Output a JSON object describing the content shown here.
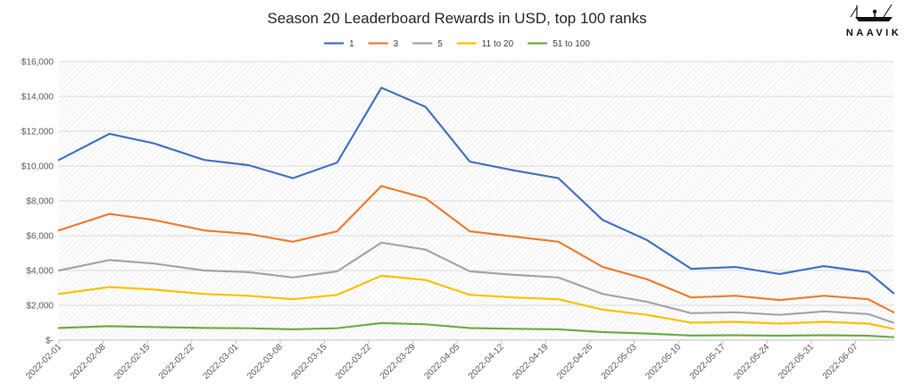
{
  "brand": {
    "logo_text": "NAAVIK"
  },
  "chart_data": {
    "type": "line",
    "title": "Season 20 Leaderboard Rewards in USD, top 100 ranks",
    "xlabel": "",
    "ylabel": "",
    "ylim": [
      0,
      16000
    ],
    "yticks": [
      0,
      2000,
      4000,
      6000,
      8000,
      10000,
      12000,
      14000,
      16000
    ],
    "ytick_labels": [
      "$-",
      "$2,000",
      "$4,000",
      "$6,000",
      "$8,000",
      "$10,000",
      "$12,000",
      "$14,000",
      "$16,000"
    ],
    "x": [
      "2022-02-01",
      "2022-02-09",
      "2022-02-16",
      "2022-02-24",
      "2022-03-03",
      "2022-03-10",
      "2022-03-17",
      "2022-03-24",
      "2022-03-31",
      "2022-04-07",
      "2022-04-14",
      "2022-04-21",
      "2022-04-28",
      "2022-05-05",
      "2022-05-12",
      "2022-05-19",
      "2022-05-26",
      "2022-06-02",
      "2022-06-09",
      "2022-06-13"
    ],
    "x_ticks": [
      "2022-02-01",
      "2022-02-08",
      "2022-02-15",
      "2022-02-22",
      "2022-03-01",
      "2022-03-08",
      "2022-03-15",
      "2022-03-22",
      "2022-03-29",
      "2022-04-05",
      "2022-04-12",
      "2022-04-19",
      "2022-04-26",
      "2022-05-03",
      "2022-05-10",
      "2022-05-17",
      "2022-05-24",
      "2022-05-31",
      "2022-06-07"
    ],
    "x_range": [
      "2022-02-01",
      "2022-06-13"
    ],
    "grid": true,
    "legend_position": "top-center",
    "background_pattern": "diagonal-hatch",
    "series": [
      {
        "name": "1",
        "color": "#4472C4",
        "values": [
          10350,
          11850,
          11300,
          10350,
          10050,
          9300,
          10200,
          14500,
          13400,
          10250,
          9750,
          9300,
          6900,
          5750,
          4100,
          4200,
          3800,
          4250,
          3900,
          2700
        ]
      },
      {
        "name": "3",
        "color": "#ED7D31",
        "values": [
          6300,
          7250,
          6900,
          6300,
          6100,
          5650,
          6250,
          8850,
          8150,
          6250,
          5950,
          5650,
          4200,
          3500,
          2450,
          2550,
          2300,
          2550,
          2350,
          1600
        ]
      },
      {
        "name": "5",
        "color": "#A5A5A5",
        "values": [
          4000,
          4600,
          4400,
          4000,
          3900,
          3600,
          3950,
          5600,
          5200,
          3950,
          3750,
          3600,
          2650,
          2200,
          1550,
          1600,
          1450,
          1650,
          1500,
          1000
        ]
      },
      {
        "name": "11 to 20",
        "color": "#FFC000",
        "values": [
          2650,
          3050,
          2900,
          2650,
          2550,
          2350,
          2600,
          3700,
          3450,
          2600,
          2450,
          2350,
          1750,
          1450,
          1000,
          1050,
          950,
          1050,
          950,
          650
        ]
      },
      {
        "name": "51 to 100",
        "color": "#70AD47",
        "values": [
          700,
          800,
          750,
          700,
          680,
          620,
          680,
          980,
          910,
          690,
          650,
          620,
          460,
          380,
          260,
          280,
          250,
          280,
          250,
          170
        ]
      }
    ]
  }
}
